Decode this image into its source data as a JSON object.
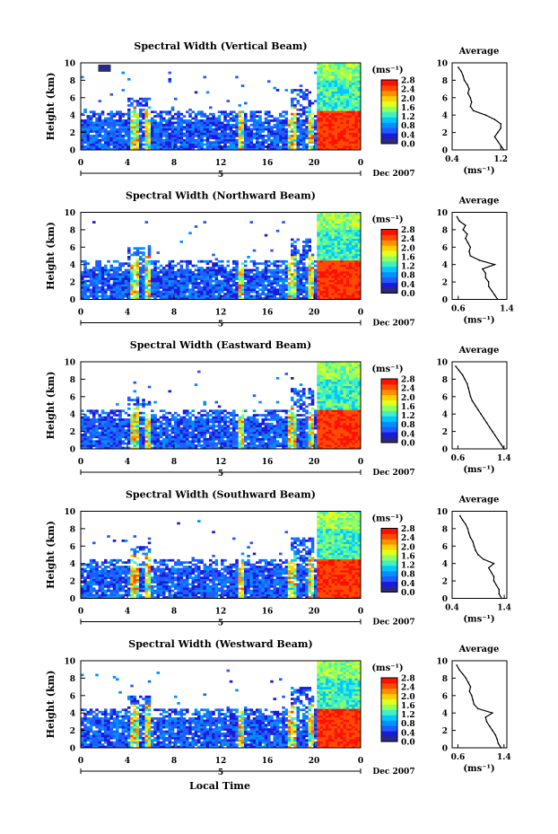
{
  "figure": {
    "xlabel": "Local Time",
    "date_label": "Dec 2007",
    "day_label": "5",
    "avg_title": "Average",
    "avg_xlabel": "(ms⁻¹)",
    "cbar_unit": "(ms⁻¹)",
    "ylabel": "Height (km)"
  },
  "colorbar": {
    "ticks": [
      "0.0",
      "0.4",
      "0.8",
      "1.2",
      "1.6",
      "2.0",
      "2.4",
      "2.8"
    ],
    "range": [
      0,
      2.8
    ],
    "colors": [
      "#2a2a78",
      "#1a1ad8",
      "#1f5cff",
      "#0090ff",
      "#00c8ff",
      "#40f0c0",
      "#90ff60",
      "#e0ff20",
      "#ffd000",
      "#ff9000",
      "#ff4a00",
      "#ff1000"
    ]
  },
  "chart_data": [
    {
      "type": "heatmap",
      "title": "Spectral Width (Vertical Beam)",
      "xlabel": "",
      "ylabel": "Height (km)",
      "x_ticks": [
        "0",
        "4",
        "8",
        "12",
        "16",
        "20",
        "0"
      ],
      "y_ticks": [
        "0",
        "2",
        "4",
        "6",
        "8",
        "10"
      ],
      "xlim": [
        0,
        24
      ],
      "ylim": [
        0,
        10
      ],
      "zlim": [
        0,
        2.8
      ],
      "profile": {
        "title": "Average",
        "xlim": [
          0.4,
          1.3
        ],
        "x_ticks": [
          "0.4",
          "1.2"
        ],
        "ylim": [
          0,
          10
        ],
        "heights": [
          0,
          0.5,
          1,
          1.5,
          2,
          2.5,
          3,
          3.5,
          4,
          4.5,
          5,
          5.5,
          6,
          6.5,
          7,
          7.5,
          8,
          8.5,
          9,
          9.5
        ],
        "values": [
          1.25,
          1.2,
          1.15,
          1.1,
          1.15,
          1.2,
          1.2,
          1.1,
          0.95,
          0.75,
          0.7,
          0.72,
          0.7,
          0.66,
          0.68,
          0.65,
          0.6,
          0.58,
          0.55,
          0.5
        ]
      }
    },
    {
      "type": "heatmap",
      "title": "Spectral Width (Northward Beam)",
      "xlabel": "",
      "ylabel": "Height (km)",
      "x_ticks": [
        "0",
        "4",
        "8",
        "12",
        "16",
        "20",
        "0"
      ],
      "y_ticks": [
        "0",
        "2",
        "4",
        "6",
        "8",
        "10"
      ],
      "xlim": [
        0,
        24
      ],
      "ylim": [
        0,
        10
      ],
      "zlim": [
        0,
        2.8
      ],
      "profile": {
        "title": "Average",
        "xlim": [
          0.5,
          1.4
        ],
        "x_ticks": [
          "0.6",
          "1.4"
        ],
        "ylim": [
          0,
          10
        ],
        "heights": [
          0,
          0.5,
          1,
          1.5,
          2,
          2.5,
          3,
          3.5,
          4,
          4.5,
          5,
          5.5,
          6,
          6.5,
          7,
          7.5,
          8,
          8.5,
          9,
          9.5
        ],
        "values": [
          1.25,
          1.2,
          1.15,
          1.1,
          1.1,
          1.05,
          1.05,
          1.0,
          1.2,
          0.95,
          0.8,
          0.78,
          0.8,
          0.76,
          0.72,
          0.75,
          0.68,
          0.72,
          0.62,
          0.58
        ]
      }
    },
    {
      "type": "heatmap",
      "title": "Spectral Width (Eastward Beam)",
      "xlabel": "",
      "ylabel": "Height (km)",
      "x_ticks": [
        "0",
        "4",
        "8",
        "12",
        "16",
        "20",
        "0"
      ],
      "y_ticks": [
        "0",
        "2",
        "4",
        "6",
        "8",
        "10"
      ],
      "xlim": [
        0,
        24
      ],
      "ylim": [
        0,
        10
      ],
      "zlim": [
        0,
        2.8
      ],
      "profile": {
        "title": "Average",
        "xlim": [
          0.5,
          1.45
        ],
        "x_ticks": [
          "0.6",
          "1.4"
        ],
        "ylim": [
          0,
          10
        ],
        "heights": [
          0,
          0.5,
          1,
          1.5,
          2,
          2.5,
          3,
          3.5,
          4,
          4.5,
          5,
          5.5,
          6,
          6.5,
          7,
          7.5,
          8,
          8.5,
          9,
          9.5
        ],
        "values": [
          1.4,
          1.35,
          1.3,
          1.25,
          1.2,
          1.15,
          1.1,
          1.05,
          1.0,
          0.95,
          0.9,
          0.85,
          0.82,
          0.8,
          0.78,
          0.76,
          0.72,
          0.68,
          0.62,
          0.56
        ]
      }
    },
    {
      "type": "heatmap",
      "title": "Spectral Width (Southward Beam)",
      "xlabel": "",
      "ylabel": "Height (km)",
      "x_ticks": [
        "0",
        "4",
        "8",
        "12",
        "16",
        "20",
        "0"
      ],
      "y_ticks": [
        "0",
        "2",
        "4",
        "6",
        "8",
        "10"
      ],
      "xlim": [
        0,
        24
      ],
      "ylim": [
        0,
        10
      ],
      "zlim": [
        0,
        2.8
      ],
      "profile": {
        "title": "Average",
        "xlim": [
          0.4,
          1.45
        ],
        "x_ticks": [
          "0.4",
          "1.4"
        ],
        "ylim": [
          0,
          10
        ],
        "heights": [
          0,
          0.5,
          1,
          1.5,
          2,
          2.5,
          3,
          3.5,
          4,
          4.5,
          5,
          5.5,
          6,
          6.5,
          7,
          7.5,
          8,
          8.5,
          9,
          9.5
        ],
        "values": [
          1.35,
          1.3,
          1.3,
          1.25,
          1.2,
          1.2,
          1.15,
          1.1,
          1.2,
          1.0,
          0.9,
          0.85,
          0.82,
          0.8,
          0.75,
          0.72,
          0.7,
          0.66,
          0.6,
          0.55
        ]
      }
    },
    {
      "type": "heatmap",
      "title": "Spectral Width (Westward Beam)",
      "xlabel": "",
      "ylabel": "Height (km)",
      "x_ticks": [
        "0",
        "4",
        "8",
        "12",
        "16",
        "20",
        "0"
      ],
      "y_ticks": [
        "0",
        "2",
        "4",
        "6",
        "8",
        "10"
      ],
      "xlim": [
        0,
        24
      ],
      "ylim": [
        0,
        10
      ],
      "zlim": [
        0,
        2.8
      ],
      "profile": {
        "title": "Average",
        "xlim": [
          0.5,
          1.45
        ],
        "x_ticks": [
          "0.6",
          "1.4"
        ],
        "ylim": [
          0,
          10
        ],
        "heights": [
          0,
          0.5,
          1,
          1.5,
          2,
          2.5,
          3,
          3.5,
          4,
          4.5,
          5,
          5.5,
          6,
          6.5,
          7,
          7.5,
          8,
          8.5,
          9,
          9.5
        ],
        "values": [
          1.35,
          1.3,
          1.28,
          1.25,
          1.2,
          1.15,
          1.1,
          1.08,
          1.2,
          0.95,
          0.88,
          0.86,
          0.84,
          0.8,
          0.82,
          0.78,
          0.74,
          0.68,
          0.62,
          0.58
        ]
      }
    }
  ]
}
